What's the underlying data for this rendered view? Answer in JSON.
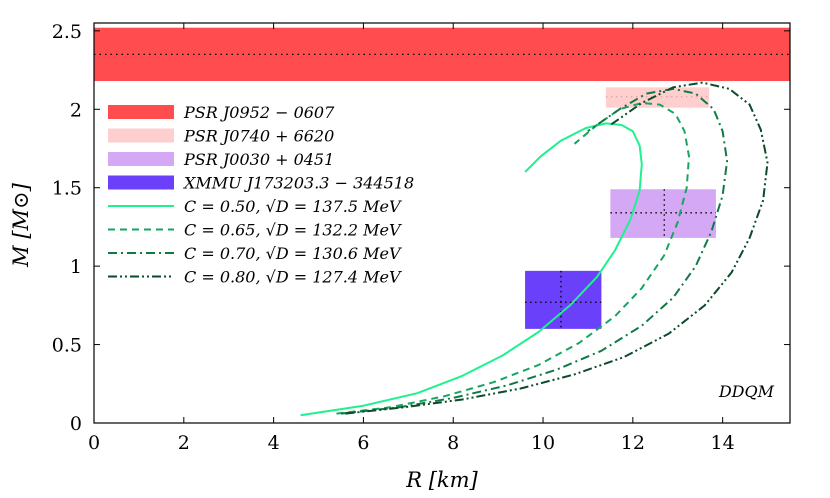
{
  "chart_data": {
    "type": "line",
    "xlabel": "R [km]",
    "ylabel": "M [M⊙]",
    "xlim": [
      0,
      15.5
    ],
    "ylim": [
      0,
      2.55
    ],
    "xticks": [
      0,
      2,
      4,
      6,
      8,
      10,
      12,
      14
    ],
    "yticks": [
      0,
      0.5,
      1,
      1.5,
      2,
      2.5
    ],
    "ytick_labels": [
      "0",
      "0.5",
      "1",
      "1.5",
      "2",
      "2.5"
    ],
    "annotation": "DDQM",
    "bands": [
      {
        "name": "PSR J0952 − 0607",
        "y_center": 2.35,
        "y_range": [
          2.18,
          2.52
        ],
        "color": "#ff4d4f"
      }
    ],
    "boxes": [
      {
        "name": "PSR J0740 + 6620",
        "x_range": [
          11.4,
          13.7
        ],
        "y_range": [
          2.01,
          2.14
        ],
        "center": [
          12.4,
          2.08
        ],
        "color": "#ffcfcf"
      },
      {
        "name": "PSR J0030 + 0451",
        "x_range": [
          11.5,
          13.85
        ],
        "y_range": [
          1.18,
          1.49
        ],
        "center": [
          12.7,
          1.34
        ],
        "color": "#d4a8f5"
      },
      {
        "name": "XMMU J173203.3 − 344518",
        "x_range": [
          9.6,
          11.3
        ],
        "y_range": [
          0.6,
          0.97
        ],
        "center": [
          10.4,
          0.77
        ],
        "color": "#6a40fb"
      }
    ],
    "series": [
      {
        "name": "C = 0.50, √D = 137.5 MeV",
        "style": "solid",
        "color": "#1ef28c",
        "x": [
          4.6,
          6.0,
          7.2,
          8.2,
          9.1,
          9.9,
          10.6,
          11.2,
          11.6,
          11.95,
          12.15,
          12.2,
          12.15,
          12.0,
          11.75,
          11.4,
          10.95,
          10.4,
          9.95,
          9.6
        ],
        "y": [
          0.05,
          0.11,
          0.19,
          0.3,
          0.43,
          0.58,
          0.75,
          0.93,
          1.1,
          1.3,
          1.48,
          1.65,
          1.77,
          1.86,
          1.9,
          1.91,
          1.88,
          1.8,
          1.7,
          1.6
        ]
      },
      {
        "name": "C = 0.65, √D = 132.2 MeV",
        "style": "dashed",
        "color": "#16a560",
        "x": [
          5.4,
          6.6,
          7.8,
          8.9,
          9.9,
          10.8,
          11.6,
          12.2,
          12.7,
          13.0,
          13.2,
          13.25,
          13.15,
          12.95,
          12.6,
          12.2,
          11.7,
          11.2,
          10.7
        ],
        "y": [
          0.06,
          0.1,
          0.17,
          0.26,
          0.37,
          0.51,
          0.68,
          0.86,
          1.07,
          1.28,
          1.5,
          1.7,
          1.86,
          1.97,
          2.03,
          2.04,
          2.0,
          1.9,
          1.78
        ]
      },
      {
        "name": "C = 0.70, √D = 130.6 MeV",
        "style": "dashdot",
        "color": "#0e7a45",
        "x": [
          5.5,
          6.8,
          8.0,
          9.2,
          10.3,
          11.3,
          12.2,
          12.9,
          13.4,
          13.75,
          14.0,
          14.1,
          14.0,
          13.8,
          13.4,
          12.9,
          12.3,
          11.7,
          11.0
        ],
        "y": [
          0.06,
          0.1,
          0.16,
          0.24,
          0.34,
          0.46,
          0.62,
          0.8,
          1.0,
          1.22,
          1.45,
          1.67,
          1.86,
          2.0,
          2.1,
          2.13,
          2.1,
          2.0,
          1.86
        ]
      },
      {
        "name": "C = 0.80, √D = 127.4 MeV",
        "style": "dashdotdot",
        "color": "#0d4a2a",
        "x": [
          5.6,
          6.9,
          8.2,
          9.5,
          10.7,
          11.8,
          12.8,
          13.6,
          14.2,
          14.6,
          14.9,
          15.0,
          14.85,
          14.6,
          14.15,
          13.55,
          12.9,
          12.2,
          11.5
        ],
        "y": [
          0.06,
          0.1,
          0.15,
          0.22,
          0.31,
          0.42,
          0.57,
          0.75,
          0.96,
          1.18,
          1.42,
          1.66,
          1.87,
          2.03,
          2.13,
          2.17,
          2.14,
          2.04,
          1.9
        ]
      }
    ]
  }
}
